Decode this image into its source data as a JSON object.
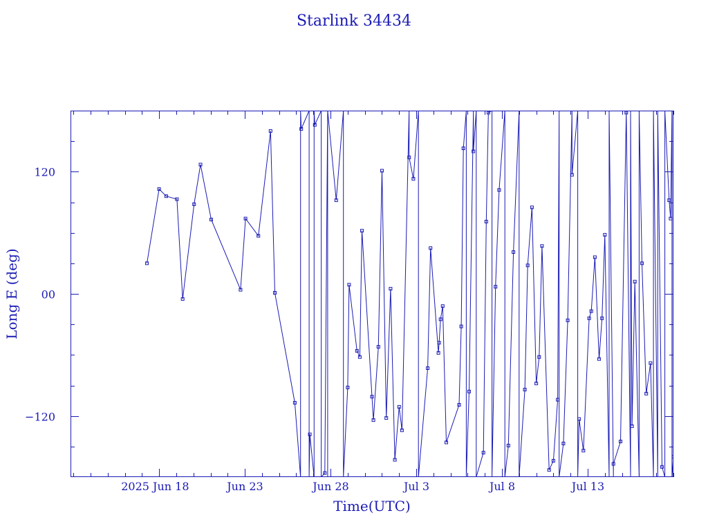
{
  "colors": {
    "ink": "#1a1ab4",
    "background": "#ffffff"
  },
  "chart_data": {
    "type": "line",
    "title": "Starlink 34434",
    "xlabel": "Time(UTC)",
    "ylabel": "Long E (deg)",
    "x_axis": {
      "unit": "date",
      "range": [
        "2025-06-12T20:00",
        "2025-07-18T00:00"
      ],
      "tick_labels": [
        {
          "date": "2025-06-18",
          "text": "2025 Jun 18"
        },
        {
          "date": "2025-06-23",
          "text": "Jun 23"
        },
        {
          "date": "2025-06-28",
          "text": "Jun 28"
        },
        {
          "date": "2025-07-03",
          "text": "Jul  3"
        },
        {
          "date": "2025-07-08",
          "text": "Jul  8"
        },
        {
          "date": "2025-07-13",
          "text": "Jul 13"
        }
      ]
    },
    "y_axis": {
      "range": [
        -180,
        180
      ],
      "tick_labels": [
        {
          "value": 120,
          "text": "120"
        },
        {
          "value": 0,
          "text": "00"
        },
        {
          "value": -120,
          "text": "−120"
        }
      ]
    },
    "grid": false,
    "series": [
      {
        "points": [
          {
            "t": "2025-06-17T07:00",
            "y": 30
          },
          {
            "t": "2025-06-18T00:00",
            "y": 103
          },
          {
            "t": "2025-06-18T10:00",
            "y": 96
          },
          {
            "t": "2025-06-19T01:00",
            "y": 93
          },
          {
            "t": "2025-06-19T09:00",
            "y": -5
          },
          {
            "t": "2025-06-20T01:00",
            "y": 88
          },
          {
            "t": "2025-06-20T10:00",
            "y": 127
          },
          {
            "t": "2025-06-21T01:00",
            "y": 73
          },
          {
            "t": "2025-06-22T18:00",
            "y": 4
          },
          {
            "t": "2025-06-23T01:00",
            "y": 74
          },
          {
            "t": "2025-06-23T19:00",
            "y": 57
          },
          {
            "t": "2025-06-24T12:00",
            "y": 160
          },
          {
            "t": "2025-06-24T18:00",
            "y": 1
          },
          {
            "t": "2025-06-25T22:00",
            "y": -107
          },
          {
            "t": "2025-06-26T06:00",
            "y": -180
          },
          {
            "t": "2025-06-26T06:00",
            "y": 180
          },
          {
            "t": "2025-06-26T07:00",
            "y": 162
          },
          {
            "t": "2025-06-26T18:00",
            "y": 180
          },
          {
            "t": "2025-06-26T18:00",
            "y": -180
          },
          {
            "t": "2025-06-26T19:00",
            "y": -138
          },
          {
            "t": "2025-06-27T01:00",
            "y": -180
          },
          {
            "t": "2025-06-27T01:00",
            "y": 180
          },
          {
            "t": "2025-06-27T02:00",
            "y": 166
          },
          {
            "t": "2025-06-27T11:00",
            "y": 180
          },
          {
            "t": "2025-06-27T11:00",
            "y": -180
          },
          {
            "t": "2025-06-27T16:00",
            "y": -176
          },
          {
            "t": "2025-06-27T20:00",
            "y": 180
          },
          {
            "t": "2025-06-27T20:00",
            "y": -180
          },
          {
            "t": "2025-06-27T20:00",
            "y": 180
          },
          {
            "t": "2025-06-28T08:00",
            "y": 92
          },
          {
            "t": "2025-06-28T18:00",
            "y": 180
          },
          {
            "t": "2025-06-28T18:00",
            "y": -180
          },
          {
            "t": "2025-06-29T00:00",
            "y": -92
          },
          {
            "t": "2025-06-29T02:00",
            "y": 9
          },
          {
            "t": "2025-06-29T13:00",
            "y": -56
          },
          {
            "t": "2025-06-29T17:00",
            "y": -62
          },
          {
            "t": "2025-06-29T20:00",
            "y": 62
          },
          {
            "t": "2025-06-30T10:00",
            "y": -101
          },
          {
            "t": "2025-06-30T12:00",
            "y": -124
          },
          {
            "t": "2025-06-30T19:00",
            "y": -52
          },
          {
            "t": "2025-07-01T00:00",
            "y": 121
          },
          {
            "t": "2025-07-01T06:00",
            "y": -122
          },
          {
            "t": "2025-07-01T12:00",
            "y": 5
          },
          {
            "t": "2025-07-01T18:00",
            "y": -163
          },
          {
            "t": "2025-07-02T00:00",
            "y": -111
          },
          {
            "t": "2025-07-02T04:00",
            "y": -134
          },
          {
            "t": "2025-07-02T14:00",
            "y": 180
          },
          {
            "t": "2025-07-02T14:00",
            "y": 134
          },
          {
            "t": "2025-07-02T20:00",
            "y": 113
          },
          {
            "t": "2025-07-03T03:00",
            "y": 180
          },
          {
            "t": "2025-07-03T03:00",
            "y": -180
          },
          {
            "t": "2025-07-03T16:00",
            "y": -73
          },
          {
            "t": "2025-07-03T20:00",
            "y": 45
          },
          {
            "t": "2025-07-04T07:00",
            "y": -58
          },
          {
            "t": "2025-07-04T08:00",
            "y": -48
          },
          {
            "t": "2025-07-04T10:00",
            "y": -25
          },
          {
            "t": "2025-07-04T13:00",
            "y": -12
          },
          {
            "t": "2025-07-04T18:00",
            "y": -146
          },
          {
            "t": "2025-07-05T12:00",
            "y": -109
          },
          {
            "t": "2025-07-05T15:00",
            "y": -32
          },
          {
            "t": "2025-07-05T18:00",
            "y": 143
          },
          {
            "t": "2025-07-05T22:00",
            "y": 180
          },
          {
            "t": "2025-07-05T22:00",
            "y": -180
          },
          {
            "t": "2025-07-06T02:00",
            "y": -96
          },
          {
            "t": "2025-07-06T08:00",
            "y": 180
          },
          {
            "t": "2025-07-06T08:00",
            "y": 140
          },
          {
            "t": "2025-07-06T12:00",
            "y": 180
          },
          {
            "t": "2025-07-06T12:00",
            "y": -180
          },
          {
            "t": "2025-07-06T22:00",
            "y": -156
          },
          {
            "t": "2025-07-07T02:00",
            "y": 71
          },
          {
            "t": "2025-07-07T05:00",
            "y": 180
          },
          {
            "t": "2025-07-07T05:00",
            "y": 178
          },
          {
            "t": "2025-07-07T10:00",
            "y": 180
          },
          {
            "t": "2025-07-07T10:00",
            "y": -180
          },
          {
            "t": "2025-07-07T15:00",
            "y": 7
          },
          {
            "t": "2025-07-07T20:00",
            "y": 102
          },
          {
            "t": "2025-07-08T04:00",
            "y": 180
          },
          {
            "t": "2025-07-08T04:00",
            "y": -180
          },
          {
            "t": "2025-07-08T09:00",
            "y": -149
          },
          {
            "t": "2025-07-08T16:00",
            "y": 41
          },
          {
            "t": "2025-07-09T00:00",
            "y": 180
          },
          {
            "t": "2025-07-09T00:00",
            "y": -180
          },
          {
            "t": "2025-07-09T08:00",
            "y": -94
          },
          {
            "t": "2025-07-09T12:00",
            "y": 28
          },
          {
            "t": "2025-07-09T18:00",
            "y": 85
          },
          {
            "t": "2025-07-10T00:00",
            "y": -88
          },
          {
            "t": "2025-07-10T04:00",
            "y": -62
          },
          {
            "t": "2025-07-10T08:00",
            "y": 47
          },
          {
            "t": "2025-07-10T18:00",
            "y": -173
          },
          {
            "t": "2025-07-11T00:00",
            "y": -164
          },
          {
            "t": "2025-07-11T06:00",
            "y": -104
          },
          {
            "t": "2025-07-11T08:00",
            "y": 180
          },
          {
            "t": "2025-07-11T08:00",
            "y": -180
          },
          {
            "t": "2025-07-11T14:00",
            "y": -147
          },
          {
            "t": "2025-07-11T20:00",
            "y": -26
          },
          {
            "t": "2025-07-12T02:00",
            "y": 180
          },
          {
            "t": "2025-07-12T02:00",
            "y": 117
          },
          {
            "t": "2025-07-12T10:00",
            "y": 180
          },
          {
            "t": "2025-07-12T10:00",
            "y": -180
          },
          {
            "t": "2025-07-12T12:00",
            "y": -123
          },
          {
            "t": "2025-07-12T18:00",
            "y": -154
          },
          {
            "t": "2025-07-13T02:00",
            "y": -24
          },
          {
            "t": "2025-07-13T05:00",
            "y": -17
          },
          {
            "t": "2025-07-13T10:00",
            "y": 36
          },
          {
            "t": "2025-07-13T16:00",
            "y": -64
          },
          {
            "t": "2025-07-13T20:00",
            "y": -24
          },
          {
            "t": "2025-07-14T00:00",
            "y": 58
          },
          {
            "t": "2025-07-14T06:00",
            "y": -180
          },
          {
            "t": "2025-07-14T06:00",
            "y": 180
          },
          {
            "t": "2025-07-14T12:00",
            "y": -180
          },
          {
            "t": "2025-07-14T12:00",
            "y": -167
          },
          {
            "t": "2025-07-14T22:00",
            "y": -145
          },
          {
            "t": "2025-07-15T06:00",
            "y": 180
          },
          {
            "t": "2025-07-15T06:00",
            "y": 178
          },
          {
            "t": "2025-07-15T12:00",
            "y": -180
          },
          {
            "t": "2025-07-15T12:00",
            "y": 180
          },
          {
            "t": "2025-07-15T14:00",
            "y": -130
          },
          {
            "t": "2025-07-15T18:00",
            "y": 12
          },
          {
            "t": "2025-07-16T00:00",
            "y": -180
          },
          {
            "t": "2025-07-16T00:00",
            "y": 180
          },
          {
            "t": "2025-07-16T04:00",
            "y": 30
          },
          {
            "t": "2025-07-16T10:00",
            "y": -98
          },
          {
            "t": "2025-07-16T16:00",
            "y": -68
          },
          {
            "t": "2025-07-16T20:00",
            "y": -180
          },
          {
            "t": "2025-07-16T20:00",
            "y": 180
          },
          {
            "t": "2025-07-17T02:00",
            "y": -180
          },
          {
            "t": "2025-07-17T02:00",
            "y": 180
          },
          {
            "t": "2025-07-17T08:00",
            "y": -170
          },
          {
            "t": "2025-07-17T12:00",
            "y": -180
          },
          {
            "t": "2025-07-17T12:00",
            "y": 180
          },
          {
            "t": "2025-07-17T18:00",
            "y": 92
          },
          {
            "t": "2025-07-17T20:00",
            "y": 74
          },
          {
            "t": "2025-07-17T22:00",
            "y": 180
          },
          {
            "t": "2025-07-17T22:00",
            "y": -180
          },
          {
            "t": "2025-07-18T00:00",
            "y": -160
          }
        ]
      }
    ]
  }
}
